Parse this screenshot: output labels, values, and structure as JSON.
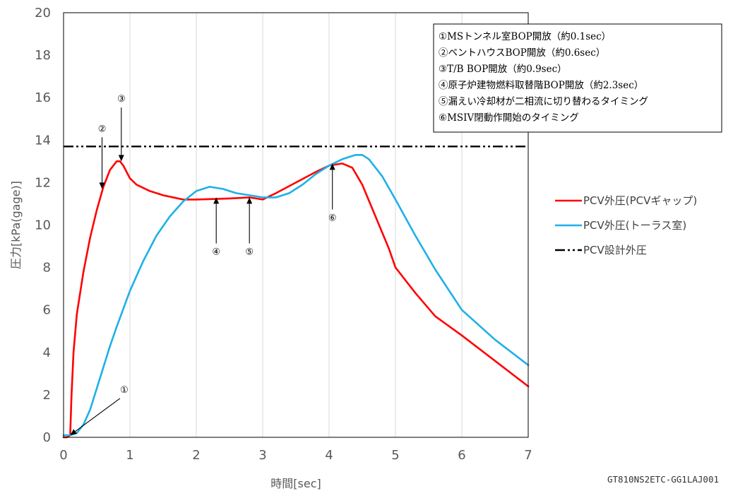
{
  "chart_data": {
    "type": "line",
    "xlabel": "時間[sec]",
    "ylabel": "圧力[kPa(gage)]",
    "xlim": [
      0,
      7
    ],
    "ylim": [
      0,
      20
    ],
    "xticks": [
      0,
      1,
      2,
      3,
      4,
      5,
      6,
      7
    ],
    "yticks": [
      0,
      2,
      4,
      6,
      8,
      10,
      12,
      14,
      16,
      18,
      20
    ],
    "grid": "vertical",
    "legend_position": "right",
    "series": [
      {
        "name": "PCV外圧(PCVギャップ)",
        "color": "#ff0000",
        "style": "solid",
        "points": [
          [
            0,
            0
          ],
          [
            0.05,
            0
          ],
          [
            0.1,
            0.1
          ],
          [
            0.12,
            2
          ],
          [
            0.15,
            4
          ],
          [
            0.2,
            5.8
          ],
          [
            0.3,
            7.8
          ],
          [
            0.4,
            9.4
          ],
          [
            0.5,
            10.7
          ],
          [
            0.6,
            11.8
          ],
          [
            0.7,
            12.6
          ],
          [
            0.8,
            13.0
          ],
          [
            0.85,
            13.0
          ],
          [
            0.9,
            12.8
          ],
          [
            1.0,
            12.2
          ],
          [
            1.1,
            11.9
          ],
          [
            1.3,
            11.6
          ],
          [
            1.5,
            11.4
          ],
          [
            1.8,
            11.2
          ],
          [
            2.0,
            11.2
          ],
          [
            2.5,
            11.25
          ],
          [
            2.8,
            11.3
          ],
          [
            3.0,
            11.2
          ],
          [
            3.2,
            11.5
          ],
          [
            3.5,
            12.0
          ],
          [
            3.8,
            12.5
          ],
          [
            4.0,
            12.8
          ],
          [
            4.2,
            12.9
          ],
          [
            4.35,
            12.7
          ],
          [
            4.5,
            11.9
          ],
          [
            4.7,
            10.4
          ],
          [
            4.9,
            8.9
          ],
          [
            5.0,
            8.0
          ],
          [
            5.3,
            6.8
          ],
          [
            5.6,
            5.7
          ],
          [
            6.0,
            4.8
          ],
          [
            6.5,
            3.6
          ],
          [
            7.0,
            2.4
          ]
        ]
      },
      {
        "name": "PCV外圧(トーラス室)",
        "color": "#1fb0e6",
        "style": "solid",
        "points": [
          [
            0,
            0.1
          ],
          [
            0.1,
            0.1
          ],
          [
            0.2,
            0.2
          ],
          [
            0.3,
            0.6
          ],
          [
            0.4,
            1.3
          ],
          [
            0.5,
            2.3
          ],
          [
            0.6,
            3.3
          ],
          [
            0.7,
            4.3
          ],
          [
            0.8,
            5.2
          ],
          [
            1.0,
            6.9
          ],
          [
            1.2,
            8.3
          ],
          [
            1.4,
            9.5
          ],
          [
            1.6,
            10.4
          ],
          [
            1.8,
            11.1
          ],
          [
            2.0,
            11.6
          ],
          [
            2.2,
            11.8
          ],
          [
            2.4,
            11.7
          ],
          [
            2.6,
            11.5
          ],
          [
            2.8,
            11.4
          ],
          [
            3.0,
            11.3
          ],
          [
            3.2,
            11.3
          ],
          [
            3.4,
            11.5
          ],
          [
            3.6,
            11.9
          ],
          [
            3.8,
            12.4
          ],
          [
            4.0,
            12.8
          ],
          [
            4.2,
            13.1
          ],
          [
            4.4,
            13.3
          ],
          [
            4.5,
            13.3
          ],
          [
            4.6,
            13.1
          ],
          [
            4.8,
            12.3
          ],
          [
            5.0,
            11.2
          ],
          [
            5.3,
            9.5
          ],
          [
            5.6,
            7.9
          ],
          [
            6.0,
            6.0
          ],
          [
            6.5,
            4.6
          ],
          [
            7.0,
            3.4
          ]
        ]
      },
      {
        "name": "PCV設計外圧",
        "color": "#000000",
        "style": "dash-dot-dot",
        "points": [
          [
            0,
            13.7
          ],
          [
            7,
            13.7
          ]
        ]
      }
    ],
    "annotations": [
      {
        "label": "①",
        "x": 0.1,
        "y": 0.1,
        "text_x": 0.85,
        "text_y": 2.1
      },
      {
        "label": "②",
        "x": 0.58,
        "y": 11.7,
        "text_x": 0.58,
        "text_y": 14.4
      },
      {
        "label": "③",
        "x": 0.87,
        "y": 13.0,
        "text_x": 0.87,
        "text_y": 15.8
      },
      {
        "label": "④",
        "x": 2.3,
        "y": 11.3,
        "text_x": 2.3,
        "text_y": 8.6
      },
      {
        "label": "⑤",
        "x": 2.8,
        "y": 11.3,
        "text_x": 2.8,
        "text_y": 8.6
      },
      {
        "label": "⑥",
        "x": 4.05,
        "y": 12.9,
        "text_x": 4.05,
        "text_y": 10.2
      }
    ],
    "notes": [
      "①MSトンネル室BOP開放（約0.1sec）",
      "②ベントハウスBOP開放（約0.6sec）",
      "③T/B BOP開放（約0.9sec）",
      "④原子炉建物燃料取替階BOP開放（約2.3sec）",
      "⑤漏えい冷却材が二相流に切り替わるタイミング",
      "⑥MSIV閉動作開始のタイミング"
    ]
  },
  "footer": {
    "document_id": "GT810NS2ETC-GG1LAJ001"
  }
}
